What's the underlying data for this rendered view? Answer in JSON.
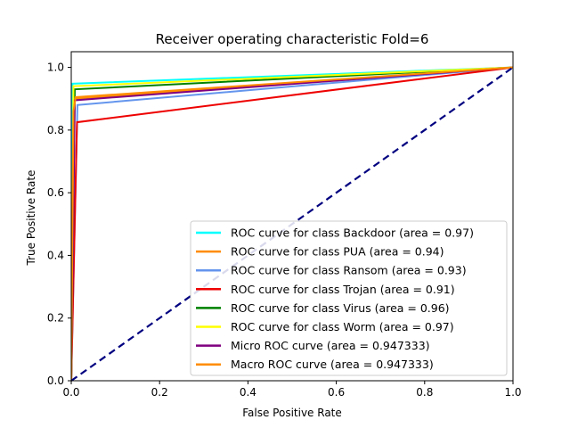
{
  "chart_data": {
    "type": "line",
    "title": "Receiver operating characteristic Fold=6",
    "xlabel": "False Positive Rate",
    "ylabel": "True Positive Rate",
    "xlim": [
      0,
      1.0
    ],
    "ylim": [
      0,
      1.05
    ],
    "xticks": [
      "0.0",
      "0.2",
      "0.4",
      "0.6",
      "0.8",
      "1.0"
    ],
    "yticks": [
      "0.0",
      "0.2",
      "0.4",
      "0.6",
      "0.8",
      "1.0"
    ],
    "grid": false,
    "legend_position": "lower-right",
    "series": [
      {
        "name": "ROC curve for class Backdoor (area = 0.97)",
        "color": "#00ffff",
        "x": [
          0,
          0.003,
          1.0
        ],
        "y": [
          0,
          0.948,
          1.0
        ]
      },
      {
        "name": "ROC curve for class PUA (area = 0.94)",
        "color": "#ff8c00",
        "x": [
          0,
          0.007,
          1.0
        ],
        "y": [
          0,
          0.9,
          1.0
        ]
      },
      {
        "name": "ROC curve for class Ransom (area = 0.93)",
        "color": "#6495ed",
        "x": [
          0,
          0.014,
          1.0
        ],
        "y": [
          0,
          0.88,
          1.0
        ]
      },
      {
        "name": "ROC curve for class Trojan (area = 0.91)",
        "color": "#ee0000",
        "x": [
          0,
          0.013,
          1.0
        ],
        "y": [
          0,
          0.825,
          1.0
        ]
      },
      {
        "name": "ROC curve for class Virus (area = 0.96)",
        "color": "#008000",
        "x": [
          0,
          0.008,
          1.0
        ],
        "y": [
          0,
          0.93,
          1.0
        ]
      },
      {
        "name": "ROC curve for class Worm (area = 0.97)",
        "color": "#ffff00",
        "x": [
          0,
          0.005,
          1.0
        ],
        "y": [
          0,
          0.94,
          1.0
        ]
      },
      {
        "name": "Micro ROC curve (area = 0.947333)",
        "color": "#800080",
        "x": [
          0,
          0.008,
          1.0
        ],
        "y": [
          0,
          0.895,
          1.0
        ]
      },
      {
        "name": "Macro ROC curve (area = 0.947333)",
        "color": "#ff8c00",
        "x": [
          0,
          0.005,
          0.01,
          1.0
        ],
        "y": [
          0,
          0.86,
          0.905,
          1.0
        ]
      }
    ],
    "reference_line": {
      "color": "#000080",
      "style": "dashed",
      "x": [
        0,
        1
      ],
      "y": [
        0,
        1
      ]
    }
  }
}
